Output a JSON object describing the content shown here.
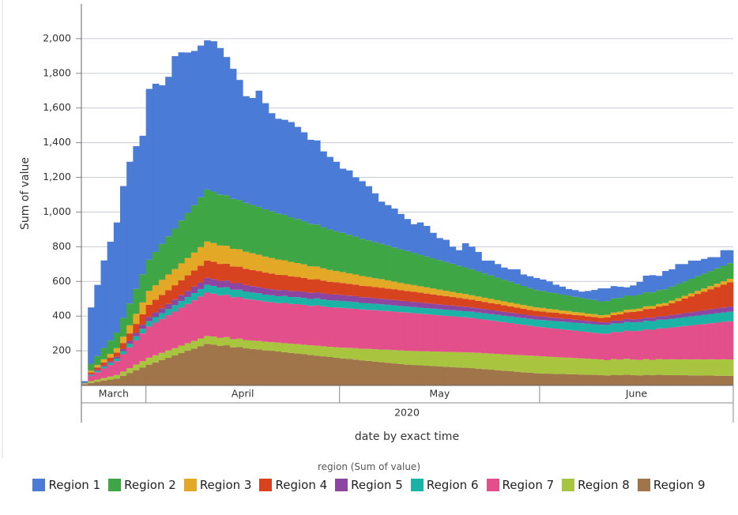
{
  "chart_data": {
    "type": "stacked_bar",
    "y_label": "Sum of value",
    "x_label": "date by exact time",
    "year_label": "2020",
    "legend_title": "region (Sum of value)",
    "grid": true,
    "ylim": [
      0,
      2200
    ],
    "yticks": [
      200,
      400,
      600,
      800,
      {
        "value": 1000,
        "label": "1,000"
      },
      {
        "value": 1200,
        "label": "1,200"
      },
      {
        "value": 1400,
        "label": "1,400"
      },
      {
        "value": 1600,
        "label": "1,600"
      },
      {
        "value": 1800,
        "label": "1,800"
      },
      {
        "value": 2000,
        "label": "2,000"
      }
    ],
    "categories": [
      "March",
      "March",
      "March",
      "March",
      "March",
      "March",
      "March",
      "March",
      "March",
      "March",
      "April",
      "April",
      "April",
      "April",
      "April",
      "April",
      "April",
      "April",
      "April",
      "April",
      "April",
      "April",
      "April",
      "April",
      "April",
      "April",
      "April",
      "April",
      "April",
      "April",
      "April",
      "April",
      "April",
      "April",
      "April",
      "April",
      "April",
      "April",
      "April",
      "April",
      "May",
      "May",
      "May",
      "May",
      "May",
      "May",
      "May",
      "May",
      "May",
      "May",
      "May",
      "May",
      "May",
      "May",
      "May",
      "May",
      "May",
      "May",
      "May",
      "May",
      "May",
      "May",
      "May",
      "May",
      "May",
      "May",
      "May",
      "May",
      "May",
      "May",
      "May",
      "June",
      "June",
      "June",
      "June",
      "June",
      "June",
      "June",
      "June",
      "June",
      "June",
      "June",
      "June",
      "June",
      "June",
      "June",
      "June",
      "June",
      "June",
      "June",
      "June",
      "June",
      "June",
      "June",
      "June",
      "June",
      "June",
      "June",
      "June",
      "June",
      "June"
    ],
    "series": [
      {
        "name": "Region 1",
        "color": "#4a7bd6",
        "values": [
          9,
          325,
          410,
          505,
          570,
          635,
          761,
          817,
          823,
          799,
          985,
          970,
          915,
          920,
          995,
          970,
          925,
          890,
          875,
          860,
          867,
          845,
          797,
          750,
          692,
          615,
          617,
          670,
          612,
          565,
          546,
          548,
          549,
          531,
          512,
          484,
          485,
          437,
          418,
          400,
          370,
          371,
          341,
          332,
          312,
          282,
          243,
          233,
          224,
          204,
          185,
          165,
          186,
          176,
          147,
          127,
          128,
          98,
          89,
          139,
          130,
          112,
          74,
          86,
          78,
          70,
          72,
          84,
          66,
          68,
          70,
          66,
          63,
          49,
          46,
          37,
          39,
          35,
          47,
          58,
          75,
          73,
          71,
          64,
          47,
          60,
          73,
          96,
          99,
          82,
          105,
          100,
          115,
          100,
          105,
          90,
          85,
          80,
          65,
          90,
          75
        ]
      },
      {
        "name": "Region 2",
        "color": "#3fa646",
        "values": [
          2,
          40,
          52,
          65,
          77,
          90,
          108,
          126,
          144,
          162,
          180,
          193,
          207,
          220,
          233,
          247,
          260,
          273,
          287,
          300,
          297,
          294,
          291,
          288,
          285,
          282,
          279,
          276,
          273,
          270,
          266,
          262,
          258,
          254,
          250,
          246,
          242,
          238,
          234,
          230,
          226,
          223,
          219,
          215,
          212,
          208,
          204,
          201,
          197,
          194,
          190,
          186,
          182,
          178,
          174,
          170,
          166,
          162,
          158,
          154,
          150,
          145,
          140,
          135,
          130,
          125,
          120,
          115,
          110,
          105,
          100,
          98,
          96,
          94,
          92,
          90,
          88,
          86,
          84,
          82,
          80,
          79,
          81,
          80,
          82,
          78,
          80,
          81,
          79,
          80,
          80,
          81,
          82,
          83,
          84,
          85,
          86,
          87,
          88,
          89,
          90
        ]
      },
      {
        "name": "Region 3",
        "color": "#e2a826",
        "values": [
          1,
          10,
          14,
          18,
          21,
          25,
          36,
          47,
          58,
          69,
          80,
          83,
          87,
          90,
          93,
          97,
          100,
          103,
          107,
          110,
          108,
          106,
          104,
          102,
          100,
          98,
          96,
          94,
          92,
          90,
          88,
          85,
          83,
          80,
          78,
          75,
          73,
          70,
          68,
          65,
          63,
          60,
          58,
          56,
          53,
          51,
          49,
          47,
          44,
          42,
          40,
          39,
          37,
          36,
          34,
          33,
          31,
          30,
          28,
          27,
          25,
          25,
          24,
          24,
          23,
          23,
          22,
          22,
          21,
          21,
          20,
          20,
          19,
          19,
          18,
          18,
          17,
          17,
          16,
          16,
          15,
          15,
          15,
          15,
          15,
          15,
          15,
          15,
          15,
          15,
          15,
          15,
          16,
          16,
          17,
          17,
          18,
          18,
          19,
          19,
          20
        ]
      },
      {
        "name": "Region 4",
        "color": "#d7431e",
        "values": [
          1,
          10,
          14,
          18,
          21,
          25,
          34,
          43,
          52,
          61,
          70,
          73,
          77,
          80,
          83,
          87,
          90,
          93,
          97,
          100,
          99,
          98,
          97,
          96,
          95,
          94,
          93,
          92,
          91,
          90,
          88,
          86,
          84,
          82,
          80,
          78,
          76,
          74,
          72,
          70,
          69,
          68,
          67,
          66,
          65,
          64,
          64,
          63,
          62,
          61,
          60,
          58,
          57,
          55,
          54,
          52,
          51,
          49,
          48,
          46,
          45,
          43,
          42,
          40,
          39,
          37,
          36,
          34,
          33,
          31,
          30,
          30,
          29,
          29,
          28,
          28,
          27,
          27,
          26,
          26,
          25,
          29,
          32,
          36,
          39,
          43,
          46,
          50,
          53,
          57,
          60,
          68,
          76,
          84,
          92,
          100,
          108,
          116,
          124,
          132,
          140
        ]
      },
      {
        "name": "Region 5",
        "color": "#8c46a2",
        "values": [
          1,
          5,
          6,
          7,
          9,
          10,
          13,
          16,
          19,
          22,
          25,
          27,
          28,
          30,
          32,
          33,
          35,
          37,
          38,
          40,
          40,
          39,
          39,
          38,
          38,
          37,
          37,
          36,
          36,
          35,
          35,
          35,
          35,
          35,
          35,
          35,
          35,
          35,
          35,
          35,
          35,
          34,
          34,
          33,
          33,
          32,
          32,
          31,
          31,
          30,
          30,
          30,
          29,
          29,
          28,
          28,
          27,
          27,
          26,
          26,
          25,
          25,
          24,
          24,
          23,
          23,
          22,
          22,
          21,
          21,
          20,
          20,
          19,
          19,
          18,
          18,
          17,
          17,
          16,
          16,
          15,
          15,
          16,
          16,
          17,
          17,
          18,
          18,
          19,
          19,
          20,
          21,
          22,
          23,
          24,
          25,
          26,
          27,
          28,
          29,
          30
        ]
      },
      {
        "name": "Region 6",
        "color": "#1ab3a6",
        "values": [
          1,
          5,
          8,
          10,
          13,
          15,
          18,
          21,
          24,
          27,
          30,
          32,
          33,
          35,
          37,
          38,
          40,
          42,
          43,
          45,
          44,
          44,
          43,
          43,
          42,
          42,
          41,
          41,
          40,
          40,
          40,
          40,
          40,
          40,
          40,
          40,
          40,
          40,
          40,
          40,
          40,
          39,
          39,
          38,
          38,
          37,
          37,
          36,
          36,
          35,
          35,
          35,
          35,
          35,
          35,
          35,
          35,
          35,
          35,
          35,
          35,
          35,
          36,
          36,
          37,
          37,
          38,
          38,
          39,
          39,
          40,
          41,
          42,
          43,
          44,
          45,
          46,
          47,
          48,
          49,
          50,
          50,
          50,
          50,
          50,
          50,
          50,
          50,
          50,
          50,
          50,
          50,
          51,
          51,
          52,
          52,
          53,
          53,
          54,
          54,
          55
        ]
      },
      {
        "name": "Region 7",
        "color": "#e34f8a",
        "values": [
          3,
          30,
          42,
          55,
          67,
          80,
          100,
          120,
          140,
          160,
          180,
          188,
          196,
          203,
          211,
          219,
          227,
          234,
          242,
          250,
          248,
          246,
          244,
          242,
          240,
          238,
          236,
          234,
          232,
          230,
          228,
          232,
          229,
          231,
          230,
          227,
          233,
          230,
          228,
          230,
          229,
          228,
          227,
          226,
          225,
          225,
          224,
          223,
          222,
          221,
          220,
          218,
          216,
          214,
          212,
          210,
          208,
          206,
          204,
          202,
          200,
          197,
          194,
          191,
          188,
          185,
          182,
          179,
          176,
          173,
          170,
          168,
          166,
          164,
          162,
          160,
          158,
          156,
          154,
          152,
          150,
          153,
          156,
          159,
          162,
          165,
          168,
          171,
          174,
          177,
          180,
          184,
          188,
          192,
          196,
          200,
          204,
          208,
          212,
          216,
          220
        ]
      },
      {
        "name": "Region 8",
        "color": "#a9c43e",
        "values": [
          2,
          10,
          12,
          15,
          17,
          20,
          24,
          28,
          32,
          36,
          40,
          41,
          41,
          42,
          42,
          43,
          43,
          44,
          44,
          45,
          46,
          46,
          47,
          47,
          48,
          48,
          49,
          49,
          50,
          50,
          51,
          52,
          53,
          54,
          55,
          56,
          57,
          58,
          59,
          60,
          62,
          64,
          66,
          67,
          69,
          71,
          73,
          75,
          77,
          78,
          80,
          81,
          82,
          83,
          84,
          85,
          86,
          87,
          88,
          89,
          90,
          91,
          92,
          93,
          94,
          95,
          96,
          97,
          98,
          99,
          100,
          99,
          98,
          97,
          96,
          95,
          94,
          93,
          92,
          91,
          90,
          88,
          91,
          90,
          92,
          89,
          90,
          91,
          88,
          90,
          90,
          91,
          91,
          92,
          92,
          93,
          93,
          94,
          94,
          95,
          95
        ]
      },
      {
        "name": "Region 9",
        "color": "#a0754a",
        "values": [
          5,
          15,
          22,
          28,
          34,
          40,
          56,
          72,
          88,
          104,
          120,
          133,
          147,
          160,
          173,
          187,
          200,
          213,
          227,
          240,
          236,
          228,
          232,
          220,
          222,
          214,
          210,
          208,
          202,
          200,
          196,
          192,
          188,
          184,
          180,
          176,
          172,
          168,
          164,
          160,
          156,
          153,
          149,
          145,
          142,
          138,
          134,
          131,
          127,
          124,
          120,
          118,
          116,
          114,
          112,
          110,
          108,
          106,
          104,
          102,
          100,
          97,
          94,
          91,
          88,
          85,
          82,
          79,
          76,
          73,
          70,
          69,
          68,
          67,
          66,
          65,
          64,
          63,
          62,
          61,
          60,
          58,
          61,
          59,
          62,
          60,
          57,
          61,
          59,
          62,
          60,
          60,
          59,
          59,
          58,
          58,
          57,
          57,
          56,
          56,
          55
        ]
      }
    ]
  }
}
